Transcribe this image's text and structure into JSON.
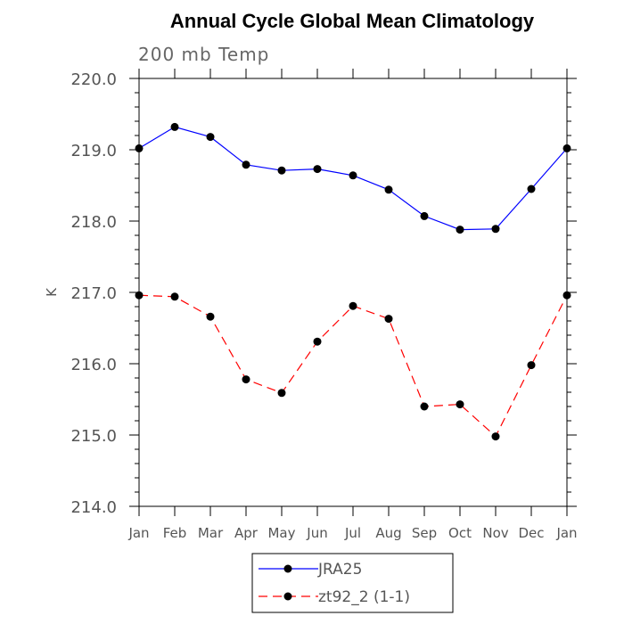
{
  "chart_data": {
    "type": "line",
    "title": "Annual Cycle Global Mean Climatology",
    "subtitle": "200 mb Temp",
    "xlabel": "",
    "ylabel": "K",
    "categories": [
      "Jan",
      "Feb",
      "Mar",
      "Apr",
      "May",
      "Jun",
      "Jul",
      "Aug",
      "Sep",
      "Oct",
      "Nov",
      "Dec",
      "Jan"
    ],
    "ylim": [
      214.0,
      220.0
    ],
    "yticks": [
      "214.0",
      "215.0",
      "216.0",
      "217.0",
      "218.0",
      "219.0",
      "220.0"
    ],
    "grid": false,
    "legend_position": "bottom",
    "series": [
      {
        "name": "JRA25",
        "color": "#0000ff",
        "line_style": "solid",
        "marker": "filled-circle",
        "values": [
          219.02,
          219.32,
          219.18,
          218.79,
          218.71,
          218.73,
          218.64,
          218.44,
          218.07,
          217.88,
          217.89,
          218.45,
          219.02
        ]
      },
      {
        "name": "zt92_2 (1-1)",
        "color": "#ff0000",
        "line_style": "dashed",
        "marker": "filled-circle",
        "values": [
          216.96,
          216.94,
          216.66,
          215.78,
          215.59,
          216.31,
          216.81,
          216.63,
          215.4,
          215.43,
          214.98,
          215.98,
          216.96
        ]
      }
    ]
  }
}
